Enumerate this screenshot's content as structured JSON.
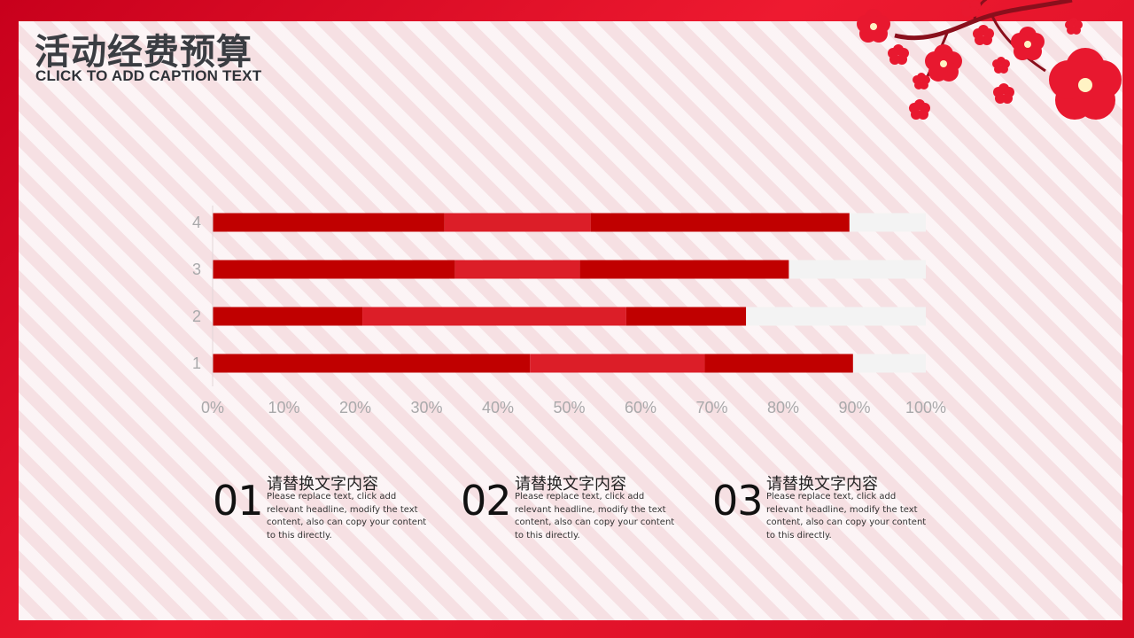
{
  "header": {
    "title": "活动经费预算",
    "caption": "CLICK TO ADD CAPTION TEXT"
  },
  "colors": {
    "frame": "#e8102a",
    "series_dark": "#c00000",
    "series_mid": "#dc1e28",
    "track": "#f3f3f3",
    "tick_text": "#a9a9ab"
  },
  "chart_data": {
    "type": "bar",
    "orientation": "horizontal",
    "stacked": true,
    "percent_scale": true,
    "categories": [
      "1",
      "2",
      "3",
      "4"
    ],
    "series": [
      {
        "color": "#c00000",
        "values": [
          44.5,
          21,
          34,
          32.5
        ]
      },
      {
        "color": "#dc1e28",
        "values": [
          24.5,
          37,
          17.5,
          20.5
        ]
      },
      {
        "color": "#c00000",
        "values": [
          20.8,
          16.8,
          29.3,
          36.3
        ]
      },
      {
        "color": "#f3f3f3",
        "values": [
          10.2,
          25.2,
          19.2,
          10.7
        ]
      }
    ],
    "xlim": [
      0,
      100
    ],
    "xticks": [
      "0%",
      "10%",
      "20%",
      "30%",
      "40%",
      "50%",
      "60%",
      "70%",
      "80%",
      "90%",
      "100%"
    ],
    "grid": false,
    "legend": "none"
  },
  "items": [
    {
      "num": "01",
      "head": "请替换文字内容",
      "body": "Please replace text, click add relevant headline, modify the text content, also can copy your content to this directly."
    },
    {
      "num": "02",
      "head": "请替换文字内容",
      "body": "Please replace text, click add relevant headline, modify the text content, also can copy your content to this directly."
    },
    {
      "num": "03",
      "head": "请替换文字内容",
      "body": "Please replace text, click add relevant headline, modify the text content, also can copy your content to this directly."
    }
  ]
}
